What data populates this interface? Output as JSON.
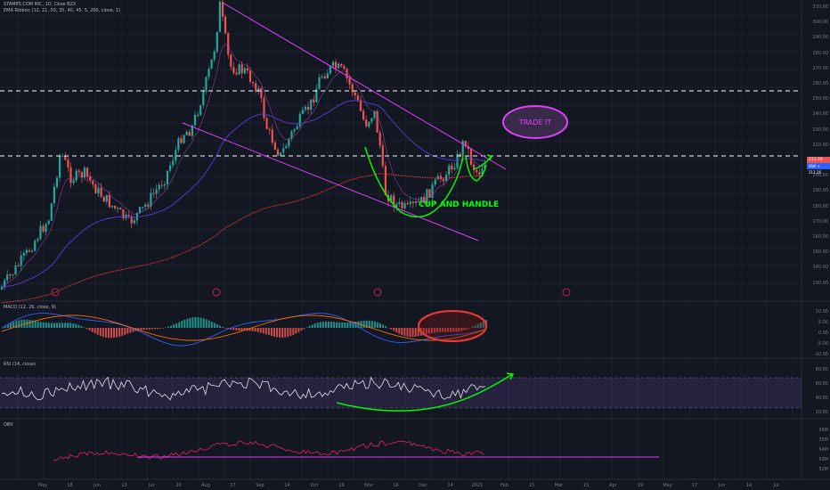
{
  "header": {
    "symbol": "STAMPS.COM INC, 1D, Cboe BZX",
    "ema_legend": "EMA Ribbon (12, 21, 50, 35, 40, 45, 5, 200, close, 1)"
  },
  "panes": {
    "macd_legend": "MACD (12, 26, close, 9)",
    "rsi_legend": "RSI (14, close)",
    "obv_legend": "OBV"
  },
  "annotations": {
    "trade_it": "TRADE IT",
    "cup_handle": "CUP AND HANDLE"
  },
  "price_axis": {
    "labels": [
      "310.00",
      "300.00",
      "290.00",
      "280.00",
      "270.00",
      "260.00",
      "250.00",
      "240.00",
      "230.00",
      "220.00",
      "210.00",
      "200.00",
      "190.00",
      "180.00",
      "170.00",
      "160.00",
      "150.00",
      "140.00",
      "130.00"
    ],
    "last_price": "211.26",
    "tag_label": "Wall + 211.26"
  },
  "macd_axis": [
    "10.00",
    "5.00",
    "0.00",
    "-5.00",
    "-10.00"
  ],
  "rsi_axis": [
    "80.00",
    "60.00",
    "40.00",
    "20.00"
  ],
  "obv_axis": [
    "56M",
    "55M",
    "54M",
    "53M",
    "52M"
  ],
  "time_axis": [
    "May",
    "18",
    "Jun",
    "13",
    "Jul",
    "20",
    "Aug",
    "17",
    "Sep",
    "14",
    "Oct",
    "19",
    "Nov",
    "16",
    "Dec",
    "14",
    "2021",
    "Feb",
    "15",
    "Mar",
    "15",
    "Apr",
    "19",
    "May",
    "17",
    "Jun",
    "14",
    "Jul"
  ],
  "colors": {
    "background": "#131722",
    "up": "#26a69a",
    "down": "#ef5350",
    "trendline": "#e040fb",
    "annotation_green": "#00ff00",
    "ema_red": "#e53935",
    "ema_purple": "#5c3bd6",
    "macd_line": "#2962ff",
    "signal_line": "#ff6d00",
    "rsi_band": "#7e57c2",
    "obv_line": "#e91e63"
  }
}
